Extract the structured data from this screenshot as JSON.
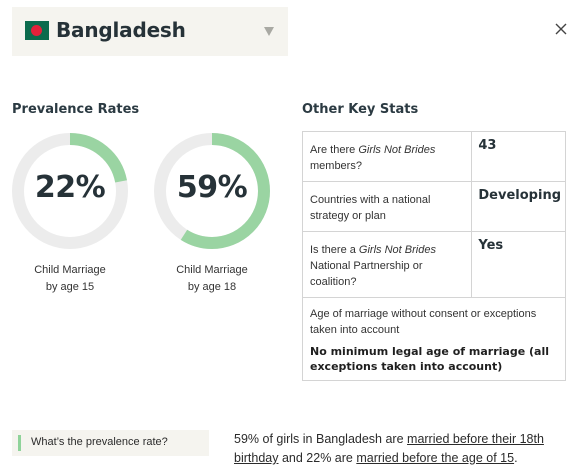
{
  "country": {
    "name": "Bangladesh",
    "flag_colors": {
      "field": "#0b6b4d",
      "disc": "#e2213a"
    }
  },
  "icons": {
    "dropdown": "chevron-down-icon",
    "close": "close-icon"
  },
  "prevalence": {
    "title": "Prevalence Rates",
    "accent_color": "#9ad4a2",
    "track_color": "#ececec",
    "items": [
      {
        "value": "22%",
        "fraction": 0.22,
        "caption_line1": "Child Marriage",
        "caption_line2": "by age 15"
      },
      {
        "value": "59%",
        "fraction": 0.59,
        "caption_line1": "Child Marriage",
        "caption_line2": "by age 18"
      }
    ]
  },
  "other_stats": {
    "title": "Other Key Stats",
    "rows": [
      {
        "q_pre": "Are there ",
        "q_em": "Girls Not Brides",
        "q_post": " members?",
        "answer": "43"
      },
      {
        "q_pre": "Countries with a national strategy or plan",
        "q_em": "",
        "q_post": "",
        "answer": "Developing"
      },
      {
        "q_pre": "Is there a ",
        "q_em": "Girls Not Brides",
        "q_post": " National Partnership or coalition?",
        "answer": "Yes"
      }
    ],
    "full_row": {
      "question": "Age of marriage without consent or exceptions taken into account",
      "answer": "No minimum legal age of marriage (all exceptions taken into account)"
    }
  },
  "faq": {
    "button_label": "What’s the prevalence rate?",
    "answer_part1": "59% of girls in Bangladesh are ",
    "answer_link1": "married before their 18th birthday",
    "answer_part2": " and 22% are ",
    "answer_link2": "married before the age of 15",
    "answer_part3": "."
  }
}
